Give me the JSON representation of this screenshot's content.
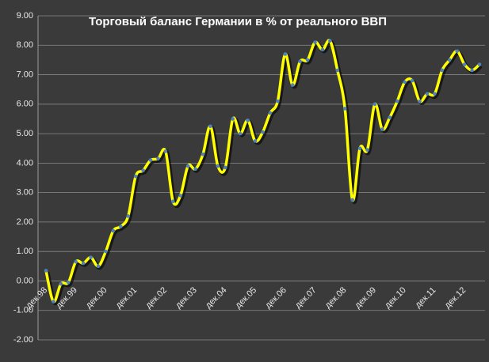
{
  "chart_data": {
    "type": "line",
    "title": "Торговый баланс Германии в % от реального ВВП",
    "categories": [
      "дек.98",
      null,
      null,
      null,
      "дек.99",
      null,
      null,
      null,
      "дек.00",
      null,
      null,
      null,
      "дек.01",
      null,
      null,
      null,
      "дек.02",
      null,
      null,
      null,
      "дек.03",
      null,
      null,
      null,
      "дек.04",
      null,
      null,
      null,
      "дек.05",
      null,
      null,
      null,
      "дек.06",
      null,
      null,
      null,
      "дек.07",
      null,
      null,
      null,
      "дек.08",
      null,
      null,
      null,
      "дек.09",
      null,
      null,
      null,
      "дек.10",
      null,
      null,
      null,
      "дек.11",
      null,
      null,
      null,
      "дек.12",
      null,
      null
    ],
    "series": [
      {
        "name": "Торговый баланс",
        "color": "#ffff00",
        "marker_color": "#4f81bd",
        "values": [
          0.35,
          -0.7,
          -0.1,
          -0.05,
          0.65,
          0.6,
          0.8,
          0.5,
          1.0,
          1.7,
          1.85,
          2.2,
          3.55,
          3.75,
          4.1,
          4.15,
          4.4,
          2.7,
          2.9,
          3.9,
          3.8,
          4.3,
          5.25,
          3.9,
          3.85,
          5.5,
          5.0,
          5.45,
          4.75,
          5.05,
          5.7,
          6.1,
          7.7,
          6.65,
          7.45,
          7.5,
          8.1,
          7.85,
          8.15,
          7.15,
          5.85,
          2.75,
          4.5,
          4.45,
          6.0,
          5.15,
          5.55,
          6.1,
          6.75,
          6.8,
          6.1,
          6.35,
          6.35,
          7.15,
          7.5,
          7.8,
          7.35,
          7.15,
          7.35
        ]
      }
    ],
    "ylim": [
      -2,
      9
    ],
    "yticks": [
      {
        "value": -2,
        "label": "-2.00"
      },
      {
        "value": -1,
        "label": "-1.00"
      },
      {
        "value": 0,
        "label": "0.00"
      },
      {
        "value": 1,
        "label": "1.00"
      },
      {
        "value": 2,
        "label": "2.00"
      },
      {
        "value": 3,
        "label": "3.00"
      },
      {
        "value": 4,
        "label": "4.00"
      },
      {
        "value": 5,
        "label": "5.00"
      },
      {
        "value": 6,
        "label": "6.00"
      },
      {
        "value": 7,
        "label": "7.00"
      },
      {
        "value": 8,
        "label": "8.00"
      },
      {
        "value": 9,
        "label": "9.00"
      }
    ],
    "grid": true
  }
}
